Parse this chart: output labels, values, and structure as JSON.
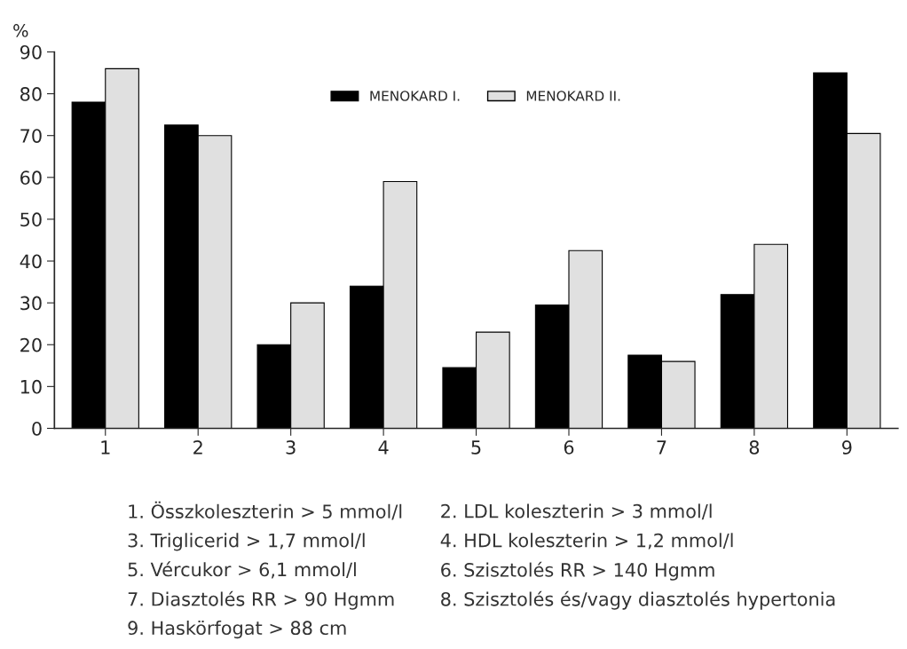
{
  "chart_data": {
    "type": "bar",
    "ylabel": "%",
    "categories": [
      "1",
      "2",
      "3",
      "4",
      "5",
      "6",
      "7",
      "8",
      "9"
    ],
    "series": [
      {
        "name": "MENOKARD I.",
        "color": "#000000",
        "values": [
          78,
          72.5,
          20,
          34,
          14.5,
          29.5,
          17.5,
          32,
          85
        ]
      },
      {
        "name": "MENOKARD II.",
        "color": "#e0e0e0",
        "values": [
          86,
          70,
          30,
          59,
          23,
          42.5,
          16,
          44,
          70.5
        ]
      }
    ],
    "ylim": [
      0,
      90
    ],
    "yticks": [
      0,
      10,
      20,
      30,
      40,
      50,
      60,
      70,
      80,
      90
    ],
    "grid": false,
    "legend": "top",
    "annotations": [
      "1. Összkoleszterin > 5 mmol/l",
      "2. LDL koleszterin > 3 mmol/l",
      "3. Triglicerid > 1,7 mmol/l",
      "4. HDL koleszterin > 1,2 mmol/l",
      "5. Vércukor > 6,1 mmol/l",
      "6. Szisztolés RR > 140 Hgmm",
      "7. Diasztolés RR > 90 Hgmm",
      "8. Szisztolés és/vagy diasztolés hypertonia",
      "9. Haskörfogat > 88 cm"
    ]
  }
}
